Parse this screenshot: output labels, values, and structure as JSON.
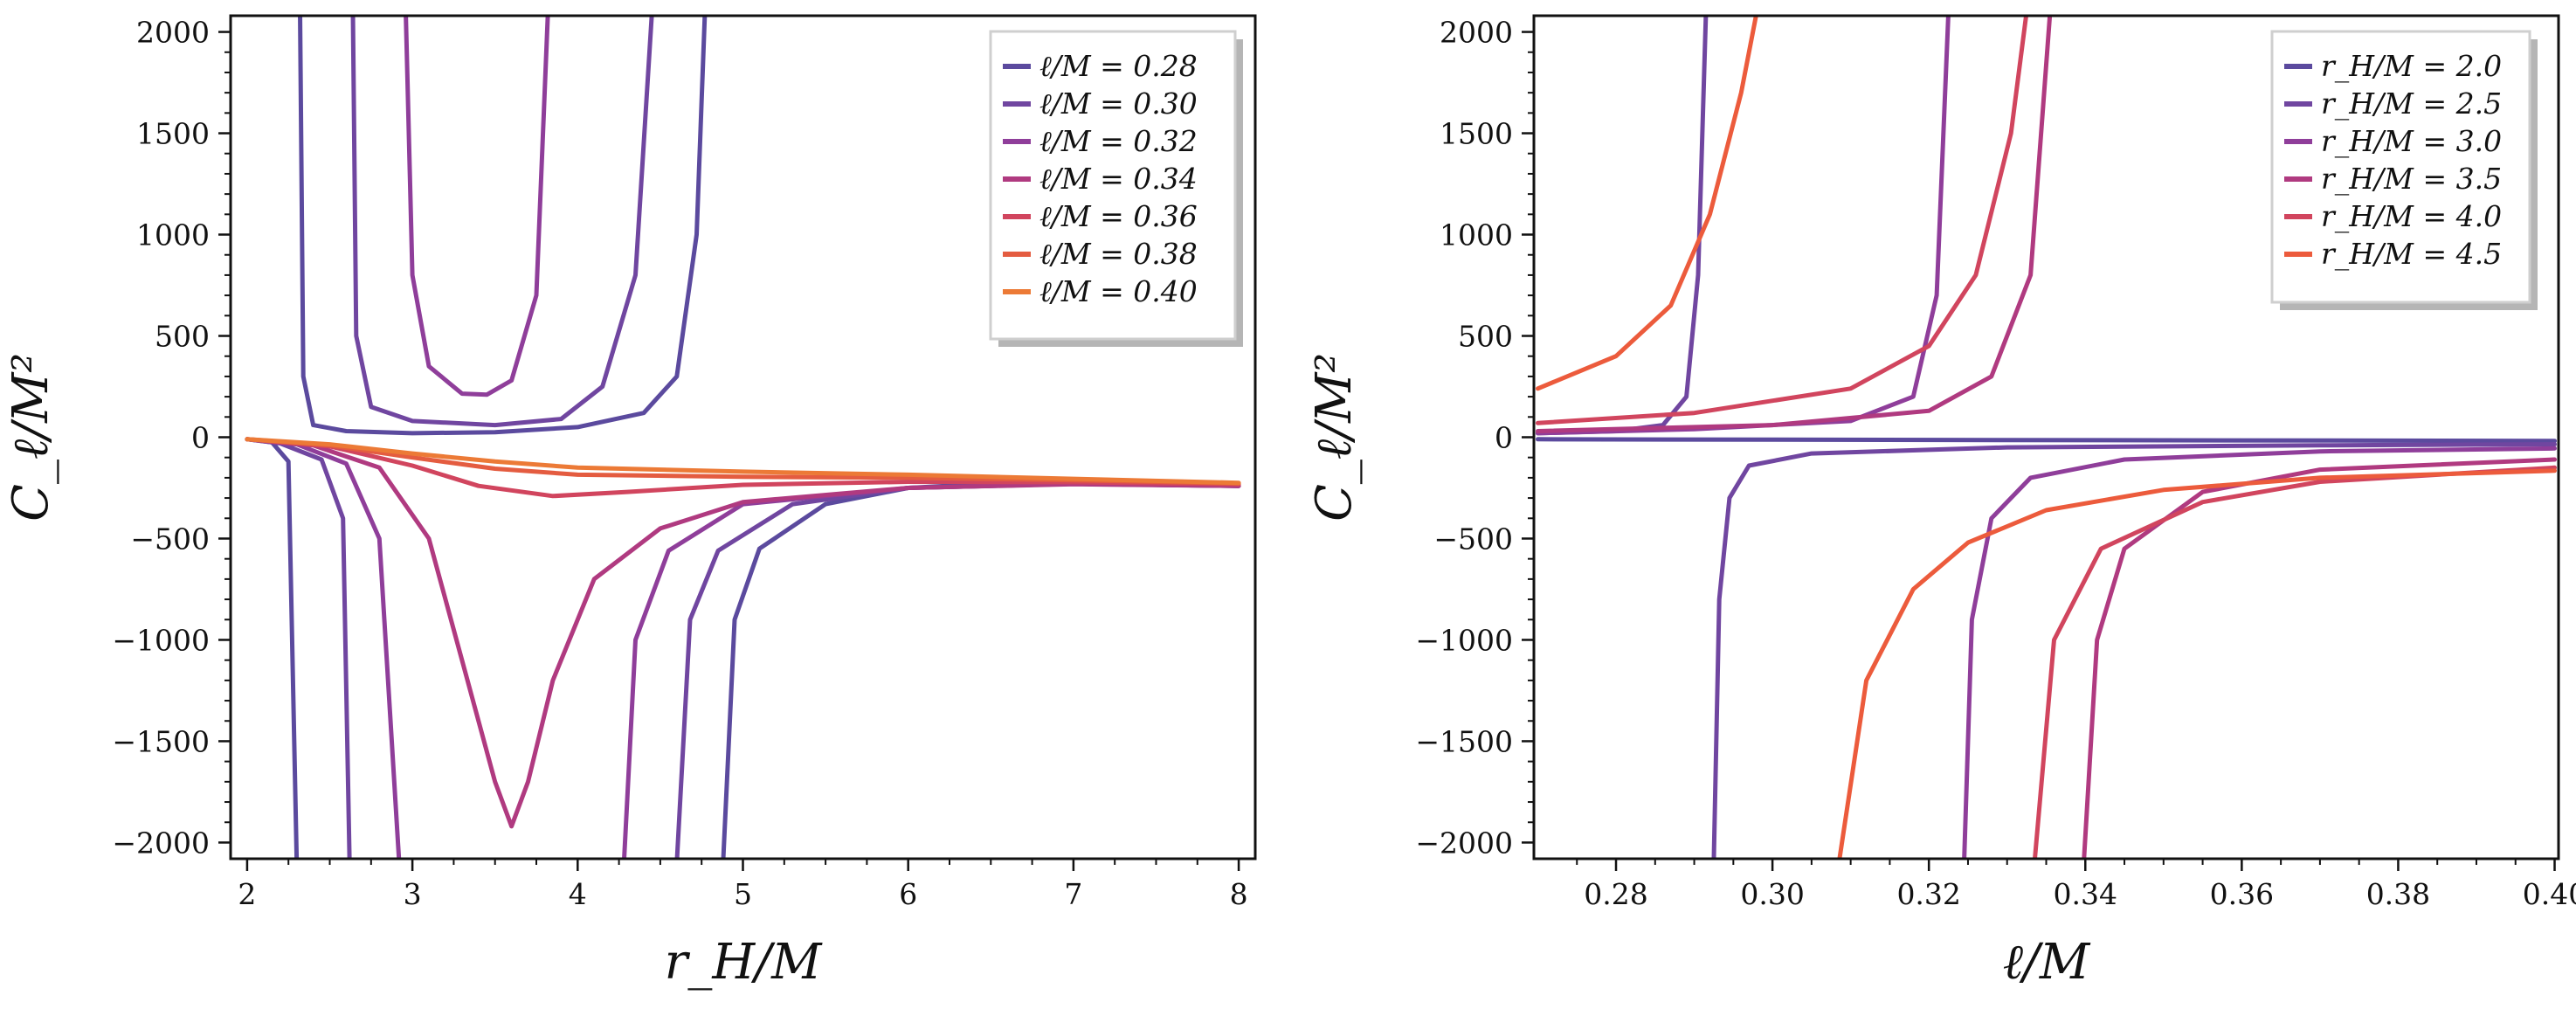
{
  "chart_data": [
    {
      "type": "line",
      "id": "left",
      "xlabel": "r_H/M",
      "ylabel": "C_ℓ/M²",
      "xlim": [
        1.9,
        8.1
      ],
      "ylim": [
        -2080,
        2080
      ],
      "xticks": [
        "2",
        "3",
        "4",
        "5",
        "6",
        "7",
        "8"
      ],
      "xtick_values": [
        2,
        3,
        4,
        5,
        6,
        7,
        8
      ],
      "yticks": [
        "−2000",
        "−1500",
        "−1000",
        "−500",
        "0",
        "500",
        "1000",
        "1500",
        "2000"
      ],
      "ytick_values": [
        -2000,
        -1500,
        -1000,
        -500,
        0,
        500,
        1000,
        1500,
        2000
      ],
      "legend_position": "top-right",
      "series": [
        {
          "name": "ℓ/M = 0.28",
          "color": "#5b4a9e",
          "segments": [
            [
              [
                2.0,
                -10
              ],
              [
                2.15,
                -25
              ],
              [
                2.25,
                -120
              ],
              [
                2.3,
                -2100
              ]
            ],
            [
              [
                2.32,
                2100
              ],
              [
                2.34,
                300
              ],
              [
                2.4,
                60
              ],
              [
                2.6,
                30
              ],
              [
                3.0,
                20
              ],
              [
                3.5,
                25
              ],
              [
                4.0,
                50
              ],
              [
                4.4,
                120
              ],
              [
                4.6,
                300
              ],
              [
                4.72,
                1000
              ],
              [
                4.77,
                2100
              ]
            ],
            [
              [
                4.88,
                -2100
              ],
              [
                4.95,
                -900
              ],
              [
                5.1,
                -550
              ],
              [
                5.5,
                -330
              ],
              [
                6.0,
                -250
              ],
              [
                6.6,
                -225
              ],
              [
                7.3,
                -228
              ],
              [
                8.0,
                -240
              ]
            ]
          ]
        },
        {
          "name": "ℓ/M = 0.30",
          "color": "#7046a0",
          "segments": [
            [
              [
                2.0,
                -10
              ],
              [
                2.2,
                -30
              ],
              [
                2.45,
                -110
              ],
              [
                2.58,
                -400
              ],
              [
                2.62,
                -2100
              ]
            ],
            [
              [
                2.64,
                2100
              ],
              [
                2.66,
                500
              ],
              [
                2.75,
                150
              ],
              [
                3.0,
                80
              ],
              [
                3.5,
                60
              ],
              [
                3.9,
                90
              ],
              [
                4.15,
                250
              ],
              [
                4.35,
                800
              ],
              [
                4.45,
                2100
              ]
            ],
            [
              [
                4.6,
                -2100
              ],
              [
                4.68,
                -900
              ],
              [
                4.85,
                -560
              ],
              [
                5.3,
                -330
              ],
              [
                6.0,
                -250
              ],
              [
                7.0,
                -230
              ],
              [
                8.0,
                -240
              ]
            ]
          ]
        },
        {
          "name": "ℓ/M = 0.32",
          "color": "#8f3e9a",
          "segments": [
            [
              [
                2.0,
                -10
              ],
              [
                2.3,
                -35
              ],
              [
                2.6,
                -130
              ],
              [
                2.8,
                -500
              ],
              [
                2.92,
                -2100
              ]
            ],
            [
              [
                2.96,
                2100
              ],
              [
                3.0,
                800
              ],
              [
                3.1,
                350
              ],
              [
                3.3,
                215
              ],
              [
                3.45,
                210
              ],
              [
                3.6,
                280
              ],
              [
                3.75,
                700
              ],
              [
                3.82,
                2100
              ]
            ],
            [
              [
                4.28,
                -2100
              ],
              [
                4.35,
                -1000
              ],
              [
                4.55,
                -560
              ],
              [
                5.0,
                -330
              ],
              [
                6.0,
                -250
              ],
              [
                7.0,
                -230
              ],
              [
                8.0,
                -240
              ]
            ]
          ]
        },
        {
          "name": "ℓ/M = 0.34",
          "color": "#b03a80",
          "segments": [
            [
              [
                2.0,
                -10
              ],
              [
                2.4,
                -40
              ],
              [
                2.8,
                -150
              ],
              [
                3.1,
                -500
              ],
              [
                3.3,
                -1100
              ],
              [
                3.5,
                -1700
              ],
              [
                3.6,
                -1920
              ],
              [
                3.7,
                -1700
              ],
              [
                3.85,
                -1200
              ],
              [
                4.1,
                -700
              ],
              [
                4.5,
                -450
              ],
              [
                5.0,
                -320
              ],
              [
                6.0,
                -250
              ],
              [
                7.0,
                -232
              ],
              [
                8.0,
                -240
              ]
            ]
          ]
        },
        {
          "name": "ℓ/M = 0.36",
          "color": "#d1455e",
          "segments": [
            [
              [
                2.0,
                -10
              ],
              [
                2.5,
                -45
              ],
              [
                3.0,
                -140
              ],
              [
                3.4,
                -240
              ],
              [
                3.85,
                -290
              ],
              [
                4.3,
                -270
              ],
              [
                5.0,
                -235
              ],
              [
                6.0,
                -220
              ],
              [
                7.0,
                -222
              ],
              [
                8.0,
                -232
              ]
            ]
          ]
        },
        {
          "name": "ℓ/M = 0.38",
          "color": "#e45c40",
          "segments": [
            [
              [
                2.0,
                -10
              ],
              [
                2.5,
                -40
              ],
              [
                3.0,
                -100
              ],
              [
                3.5,
                -155
              ],
              [
                4.0,
                -185
              ],
              [
                5.0,
                -195
              ],
              [
                6.0,
                -200
              ],
              [
                7.0,
                -212
              ],
              [
                8.0,
                -228
              ]
            ]
          ]
        },
        {
          "name": "ℓ/M = 0.40",
          "color": "#ec7a36",
          "segments": [
            [
              [
                2.0,
                -10
              ],
              [
                2.5,
                -35
              ],
              [
                3.0,
                -80
              ],
              [
                3.5,
                -120
              ],
              [
                4.0,
                -150
              ],
              [
                5.0,
                -170
              ],
              [
                6.0,
                -185
              ],
              [
                7.0,
                -205
              ],
              [
                8.0,
                -225
              ]
            ]
          ]
        }
      ]
    },
    {
      "type": "line",
      "id": "right",
      "xlabel": "ℓ/M",
      "ylabel": "C_ℓ/M²",
      "xlim": [
        0.2695,
        0.4005
      ],
      "ylim": [
        -2080,
        2080
      ],
      "xticks": [
        "0.28",
        "0.30",
        "0.32",
        "0.34",
        "0.36",
        "0.38",
        "0.40"
      ],
      "xtick_values": [
        0.28,
        0.3,
        0.32,
        0.34,
        0.36,
        0.38,
        0.4
      ],
      "yticks": [
        "−2000",
        "−1500",
        "−1000",
        "−500",
        "0",
        "500",
        "1000",
        "1500",
        "2000"
      ],
      "ytick_values": [
        -2000,
        -1500,
        -1000,
        -500,
        0,
        500,
        1000,
        1500,
        2000
      ],
      "legend_position": "top-right",
      "series": [
        {
          "name": "r_H/M = 2.0",
          "color": "#5b4a9e",
          "segments": [
            [
              [
                0.27,
                -10
              ],
              [
                0.3,
                -12
              ],
              [
                0.35,
                -15
              ],
              [
                0.4,
                -18
              ]
            ]
          ]
        },
        {
          "name": "r_H/M = 2.5",
          "color": "#7046a0",
          "segments": [
            [
              [
                0.27,
                20
              ],
              [
                0.28,
                30
              ],
              [
                0.286,
                60
              ],
              [
                0.289,
                200
              ],
              [
                0.2905,
                800
              ],
              [
                0.2915,
                2100
              ]
            ],
            [
              [
                0.2925,
                -2100
              ],
              [
                0.2932,
                -800
              ],
              [
                0.2945,
                -300
              ],
              [
                0.297,
                -140
              ],
              [
                0.305,
                -80
              ],
              [
                0.33,
                -50
              ],
              [
                0.37,
                -40
              ],
              [
                0.4,
                -35
              ]
            ]
          ]
        },
        {
          "name": "r_H/M = 3.0",
          "color": "#8f3e9a",
          "segments": [
            [
              [
                0.27,
                20
              ],
              [
                0.29,
                40
              ],
              [
                0.31,
                80
              ],
              [
                0.318,
                200
              ],
              [
                0.321,
                700
              ],
              [
                0.3225,
                2100
              ]
            ],
            [
              [
                0.3245,
                -2100
              ],
              [
                0.3255,
                -900
              ],
              [
                0.328,
                -400
              ],
              [
                0.333,
                -200
              ],
              [
                0.345,
                -110
              ],
              [
                0.37,
                -70
              ],
              [
                0.4,
                -55
              ]
            ]
          ]
        },
        {
          "name": "r_H/M = 3.5",
          "color": "#b03a80",
          "segments": [
            [
              [
                0.27,
                30
              ],
              [
                0.3,
                60
              ],
              [
                0.32,
                130
              ],
              [
                0.328,
                300
              ],
              [
                0.333,
                800
              ],
              [
                0.3355,
                2100
              ]
            ],
            [
              [
                0.3398,
                -2100
              ],
              [
                0.3415,
                -1000
              ],
              [
                0.345,
                -550
              ],
              [
                0.355,
                -270
              ],
              [
                0.37,
                -160
              ],
              [
                0.4,
                -110
              ]
            ]
          ]
        },
        {
          "name": "r_H/M = 4.0",
          "color": "#d1455e",
          "segments": [
            [
              [
                0.27,
                70
              ],
              [
                0.29,
                120
              ],
              [
                0.31,
                240
              ],
              [
                0.32,
                450
              ],
              [
                0.326,
                800
              ],
              [
                0.3305,
                1500
              ],
              [
                0.3325,
                2100
              ]
            ],
            [
              [
                0.3335,
                -2100
              ],
              [
                0.336,
                -1000
              ],
              [
                0.342,
                -550
              ],
              [
                0.355,
                -320
              ],
              [
                0.37,
                -220
              ],
              [
                0.4,
                -150
              ]
            ]
          ]
        },
        {
          "name": "r_H/M = 4.5",
          "color": "#ec5b3c",
          "segments": [
            [
              [
                0.27,
                240
              ],
              [
                0.28,
                400
              ],
              [
                0.287,
                650
              ],
              [
                0.292,
                1100
              ],
              [
                0.296,
                1700
              ],
              [
                0.298,
                2100
              ]
            ],
            [
              [
                0.3085,
                -2100
              ],
              [
                0.312,
                -1200
              ],
              [
                0.318,
                -750
              ],
              [
                0.325,
                -520
              ],
              [
                0.335,
                -360
              ],
              [
                0.35,
                -260
              ],
              [
                0.37,
                -200
              ],
              [
                0.4,
                -165
              ]
            ]
          ]
        }
      ]
    }
  ]
}
